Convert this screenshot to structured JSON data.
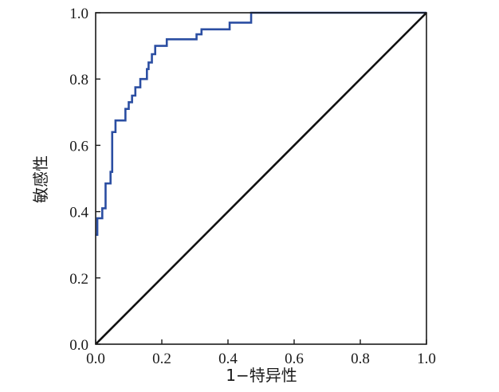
{
  "chart_data": {
    "type": "line",
    "xlabel": "1−特异性",
    "ylabel": "敏感性",
    "xlim": [
      0,
      1
    ],
    "ylim": [
      0,
      1
    ],
    "xticks": [
      "0.0",
      "0.2",
      "0.4",
      "0.6",
      "0.8",
      "1.0"
    ],
    "yticks": [
      "0.0",
      "0.2",
      "0.4",
      "0.6",
      "0.8",
      "1.0"
    ],
    "grid": false,
    "series": [
      {
        "color": "#2b4ea2",
        "style": "step",
        "points": [
          [
            0.0,
            0.33
          ],
          [
            0.005,
            0.33
          ],
          [
            0.005,
            0.38
          ],
          [
            0.02,
            0.38
          ],
          [
            0.02,
            0.41
          ],
          [
            0.03,
            0.41
          ],
          [
            0.03,
            0.485
          ],
          [
            0.045,
            0.485
          ],
          [
            0.045,
            0.52
          ],
          [
            0.05,
            0.52
          ],
          [
            0.05,
            0.64
          ],
          [
            0.06,
            0.64
          ],
          [
            0.06,
            0.675
          ],
          [
            0.09,
            0.675
          ],
          [
            0.09,
            0.71
          ],
          [
            0.1,
            0.71
          ],
          [
            0.1,
            0.73
          ],
          [
            0.11,
            0.73
          ],
          [
            0.11,
            0.75
          ],
          [
            0.12,
            0.75
          ],
          [
            0.12,
            0.775
          ],
          [
            0.135,
            0.775
          ],
          [
            0.135,
            0.8
          ],
          [
            0.155,
            0.8
          ],
          [
            0.155,
            0.83
          ],
          [
            0.16,
            0.83
          ],
          [
            0.16,
            0.85
          ],
          [
            0.17,
            0.85
          ],
          [
            0.17,
            0.875
          ],
          [
            0.18,
            0.875
          ],
          [
            0.18,
            0.9
          ],
          [
            0.215,
            0.9
          ],
          [
            0.215,
            0.92
          ],
          [
            0.305,
            0.92
          ],
          [
            0.305,
            0.935
          ],
          [
            0.32,
            0.935
          ],
          [
            0.32,
            0.95
          ],
          [
            0.405,
            0.95
          ],
          [
            0.405,
            0.97
          ],
          [
            0.47,
            0.97
          ],
          [
            0.47,
            1.0
          ],
          [
            1.0,
            1.0
          ]
        ]
      },
      {
        "color": "#111111",
        "style": "diagonal",
        "points": [
          [
            0,
            0
          ],
          [
            1,
            1
          ]
        ]
      }
    ]
  }
}
